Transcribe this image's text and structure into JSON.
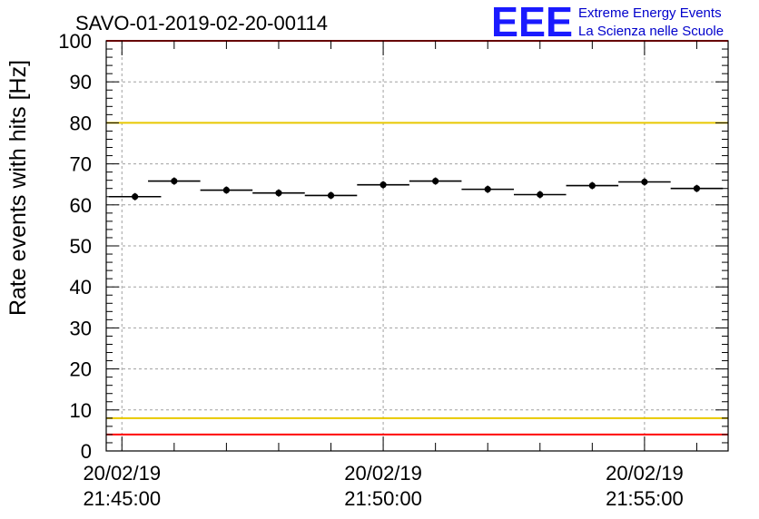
{
  "chart_data": {
    "type": "scatter",
    "title": "SAVO-01-2019-02-20-00114",
    "ylabel": "Rate events with hits [Hz]",
    "xlabel": "",
    "ylim": [
      0,
      100
    ],
    "yticks": [
      0,
      10,
      20,
      30,
      40,
      50,
      60,
      70,
      80,
      90,
      100
    ],
    "xlim_minutes": [
      -0.3,
      11.6
    ],
    "xticks": [
      {
        "minutes": 0,
        "date": "20/02/19",
        "time": "21:45:00"
      },
      {
        "minutes": 5,
        "date": "20/02/19",
        "time": "21:50:00"
      },
      {
        "minutes": 10,
        "date": "20/02/19",
        "time": "21:55:00"
      }
    ],
    "grid": true,
    "series": [
      {
        "name": "rate",
        "bin_width_minutes": 0.5,
        "x_minutes": [
          0.25,
          1.0,
          2.0,
          3.0,
          4.0,
          5.0,
          6.0,
          7.0,
          8.0,
          9.0,
          10.0,
          11.0
        ],
        "values": [
          62.0,
          65.8,
          63.6,
          62.9,
          62.3,
          64.9,
          65.8,
          63.8,
          62.5,
          64.7,
          65.6,
          64.0
        ]
      }
    ],
    "reference_lines": [
      {
        "name": "upper-red-limit",
        "value": 100,
        "color": "#ff0000"
      },
      {
        "name": "upper-yellow-limit",
        "value": 80,
        "color": "#e8c800"
      },
      {
        "name": "lower-yellow-limit",
        "value": 8,
        "color": "#e8c800"
      },
      {
        "name": "lower-red-limit",
        "value": 4,
        "color": "#ff0000"
      }
    ]
  },
  "logo": {
    "mark": "EEE",
    "line1": "Extreme Energy Events",
    "line2": "La Scienza nelle Scuole"
  },
  "colors": {
    "grid": "#a0a0a0",
    "axis": "#000000",
    "marker": "#000000",
    "logo": "#1a1aff"
  }
}
